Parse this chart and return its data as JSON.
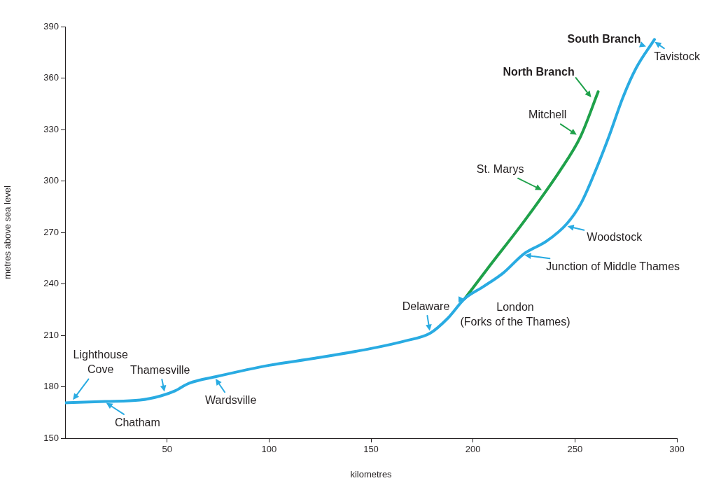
{
  "chart_data": {
    "type": "line",
    "xlabel": "kilometres",
    "ylabel": "metres above sea level",
    "xlim": [
      0,
      300
    ],
    "xticks": [
      50,
      100,
      150,
      200,
      250,
      300
    ],
    "ylim": [
      150,
      390
    ],
    "yticks": [
      150,
      180,
      210,
      240,
      270,
      300,
      330,
      360,
      390
    ],
    "grid": false,
    "legend": "top right",
    "marker": "none",
    "line_style": "solid",
    "series": [
      {
        "name": "South Branch",
        "color": "#29abe2",
        "x": [
          0,
          19.6,
          36.7,
          47,
          53.9,
          60.7,
          74.4,
          100,
          122.5,
          150,
          167,
          179,
          187.7,
          196,
          205,
          215,
          225,
          236,
          246,
          253,
          260,
          266.7,
          273.5,
          280,
          289
        ],
        "values": [
          170.6,
          171.4,
          172.2,
          174.7,
          177.6,
          182,
          186,
          192.5,
          196.6,
          202.3,
          206.8,
          211.2,
          220,
          231.4,
          238.3,
          246.5,
          257.5,
          264.8,
          275,
          287,
          305.7,
          326,
          348.6,
          365.8,
          382.5
        ]
      },
      {
        "name": "North Branch",
        "color": "#1fa14a",
        "x": [
          196,
          208.2,
          225.4,
          242.5,
          252.8,
          261.4
        ],
        "values": [
          231.4,
          250.5,
          277,
          305.7,
          326,
          352
        ]
      }
    ],
    "annotations": [
      {
        "text": "Lighthouse\nCove",
        "x": 3,
        "y": 171
      },
      {
        "text": "Chatham",
        "x": 19,
        "y": 171.5
      },
      {
        "text": "Thamesville",
        "x": 49,
        "y": 175.5
      },
      {
        "text": "Wardsville",
        "x": 73,
        "y": 186
      },
      {
        "text": "Delaware",
        "x": 179,
        "y": 211
      },
      {
        "text": "London\n(Forks of the Thames)",
        "x": 196,
        "y": 231
      },
      {
        "text": "Junction of Middle Thames",
        "x": 224,
        "y": 257
      },
      {
        "text": "Woodstock",
        "x": 245,
        "y": 274
      },
      {
        "text": "Tavistock",
        "x": 288,
        "y": 382
      },
      {
        "text": "Mitchell",
        "x": 252,
        "y": 326
      },
      {
        "text": "St. Marys",
        "x": 235,
        "y": 294
      }
    ]
  }
}
